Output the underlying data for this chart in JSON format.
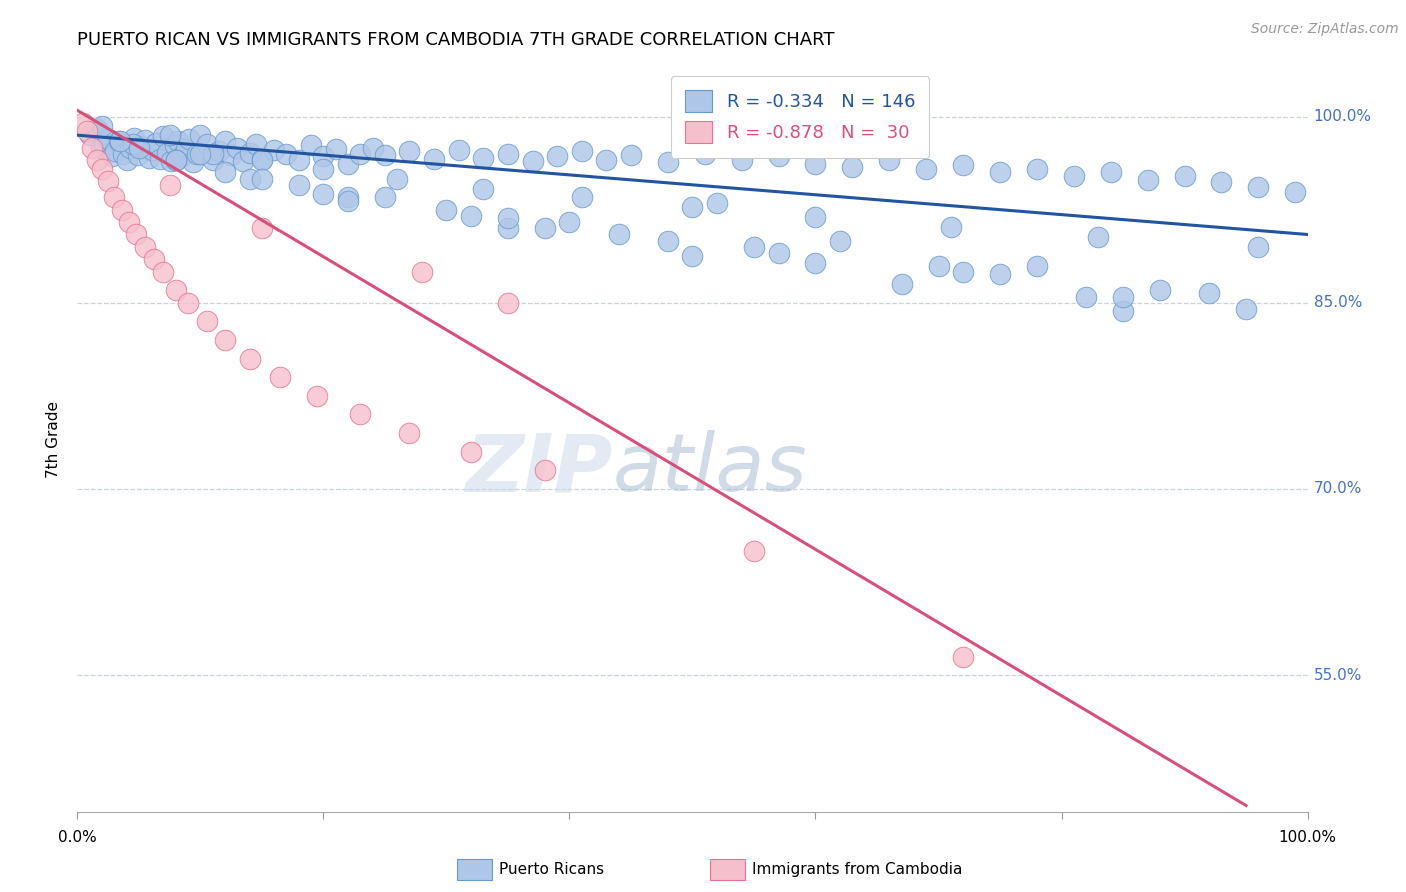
{
  "title": "PUERTO RICAN VS IMMIGRANTS FROM CAMBODIA 7TH GRADE CORRELATION CHART",
  "source_text": "Source: ZipAtlas.com",
  "ylabel": "7th Grade",
  "xlim": [
    0,
    100
  ],
  "ylim": [
    44,
    104
  ],
  "ytick_labels": [
    "55.0%",
    "70.0%",
    "85.0%",
    "100.0%"
  ],
  "ytick_values": [
    55,
    70,
    85,
    100
  ],
  "right_axis_color": "#4472c4",
  "blue_R": -0.334,
  "blue_N": 146,
  "pink_R": -0.878,
  "pink_N": 30,
  "blue_trend_x": [
    0,
    100
  ],
  "blue_trend_y": [
    98.5,
    90.5
  ],
  "pink_trend_x": [
    0,
    95
  ],
  "pink_trend_y": [
    100.5,
    44.5
  ],
  "blue_scatter_color": "#aec6e8",
  "blue_scatter_edge": "#6699cc",
  "pink_scatter_color": "#f5c0cc",
  "pink_scatter_edge": "#e87090",
  "blue_line_color": "#2255a0",
  "pink_line_color": "#d8507a",
  "legend_blue_color": "#aec6e8",
  "legend_pink_color": "#f5c0cc",
  "grid_color": "#c8d4e4",
  "background_color": "#ffffff",
  "blue_scatter_x": [
    1.0,
    1.3,
    1.6,
    1.9,
    2.2,
    2.5,
    2.8,
    3.1,
    3.4,
    3.7,
    4.0,
    4.3,
    4.6,
    4.9,
    5.2,
    5.5,
    5.8,
    6.1,
    6.4,
    6.7,
    7.0,
    7.3,
    7.6,
    7.9,
    8.2,
    8.5,
    8.8,
    9.1,
    9.4,
    9.7,
    10.0,
    10.5,
    11.0,
    11.5,
    12.0,
    12.5,
    13.0,
    13.5,
    14.0,
    14.5,
    15.0,
    16.0,
    17.0,
    18.0,
    19.0,
    20.0,
    21.0,
    22.0,
    23.0,
    24.0,
    25.0,
    27.0,
    29.0,
    31.0,
    33.0,
    35.0,
    37.0,
    39.0,
    41.0,
    43.0,
    45.0,
    48.0,
    51.0,
    54.0,
    57.0,
    60.0,
    63.0,
    66.0,
    69.0,
    72.0,
    75.0,
    78.0,
    81.0,
    84.0,
    87.0,
    90.0,
    93.0,
    96.0,
    99.0,
    2.0,
    4.5,
    7.5,
    11.0,
    15.0,
    20.0,
    26.0,
    33.0,
    41.0,
    50.0,
    60.0,
    71.0,
    83.0,
    96.0,
    3.5,
    8.0,
    14.0,
    22.0,
    32.0,
    44.0,
    57.0,
    72.0,
    88.0,
    5.0,
    12.0,
    22.0,
    35.0,
    50.0,
    67.0,
    85.0,
    8.0,
    20.0,
    38.0,
    60.0,
    82.0,
    15.0,
    40.0,
    70.0,
    95.0,
    25.0,
    55.0,
    85.0,
    35.0,
    75.0,
    48.0,
    92.0,
    18.0,
    62.0,
    30.0,
    78.0,
    10.0,
    52.0
  ],
  "blue_scatter_y": [
    98.5,
    98.8,
    99.0,
    97.5,
    97.8,
    98.2,
    96.8,
    97.2,
    98.0,
    97.0,
    96.5,
    97.5,
    98.3,
    96.9,
    97.6,
    98.1,
    96.7,
    97.3,
    97.9,
    96.6,
    98.4,
    97.1,
    96.4,
    97.7,
    98.0,
    96.8,
    97.4,
    98.2,
    96.3,
    97.0,
    98.5,
    97.8,
    96.5,
    97.2,
    98.0,
    96.9,
    97.5,
    96.4,
    97.1,
    97.8,
    96.6,
    97.3,
    97.0,
    96.5,
    97.7,
    96.8,
    97.4,
    96.2,
    97.0,
    97.5,
    96.9,
    97.2,
    96.6,
    97.3,
    96.7,
    97.0,
    96.4,
    96.8,
    97.2,
    96.5,
    96.9,
    96.3,
    97.0,
    96.5,
    96.8,
    96.2,
    95.9,
    96.5,
    95.8,
    96.1,
    95.5,
    95.8,
    95.2,
    95.5,
    94.9,
    95.2,
    94.7,
    94.3,
    93.9,
    99.2,
    97.8,
    98.5,
    97.0,
    96.5,
    95.8,
    95.0,
    94.2,
    93.5,
    92.7,
    91.9,
    91.1,
    90.3,
    89.5,
    98.0,
    96.5,
    95.0,
    93.5,
    92.0,
    90.5,
    89.0,
    87.5,
    86.0,
    97.5,
    95.5,
    93.2,
    91.0,
    88.8,
    86.5,
    84.3,
    96.5,
    93.8,
    91.0,
    88.2,
    85.5,
    95.0,
    91.5,
    88.0,
    84.5,
    93.5,
    89.5,
    85.5,
    91.8,
    87.3,
    90.0,
    85.8,
    94.5,
    90.0,
    92.5,
    88.0,
    97.0,
    93.0
  ],
  "pink_scatter_x": [
    0.5,
    0.8,
    1.2,
    1.6,
    2.0,
    2.5,
    3.0,
    3.6,
    4.2,
    4.8,
    5.5,
    6.2,
    7.0,
    8.0,
    9.0,
    10.5,
    12.0,
    14.0,
    16.5,
    19.5,
    23.0,
    27.0,
    32.0,
    38.0,
    28.0,
    35.0,
    55.0,
    72.0,
    15.0,
    7.5
  ],
  "pink_scatter_y": [
    99.5,
    98.8,
    97.5,
    96.5,
    95.8,
    94.8,
    93.5,
    92.5,
    91.5,
    90.5,
    89.5,
    88.5,
    87.5,
    86.0,
    85.0,
    83.5,
    82.0,
    80.5,
    79.0,
    77.5,
    76.0,
    74.5,
    73.0,
    71.5,
    87.5,
    85.0,
    65.0,
    56.5,
    91.0,
    94.5
  ]
}
